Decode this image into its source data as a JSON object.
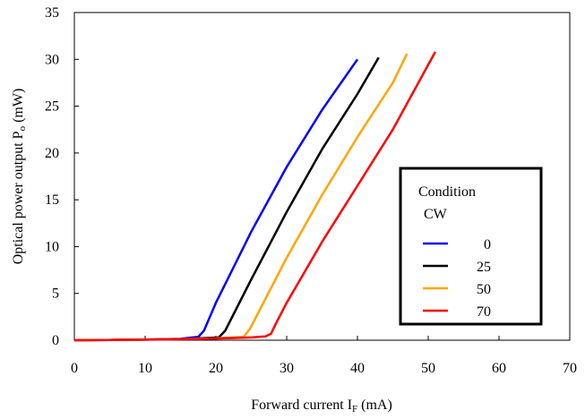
{
  "chart_data": {
    "type": "line",
    "title": "",
    "xlabel": "Forward current I",
    "xlabel_sub": "F",
    "xlabel_unit": " (mA)",
    "ylabel": "Optical power output P",
    "ylabel_sub": "o",
    "ylabel_unit": " (mW)",
    "xlim": [
      0,
      70
    ],
    "ylim": [
      0,
      35
    ],
    "xticks": [
      0,
      10,
      20,
      30,
      40,
      50,
      60,
      70
    ],
    "yticks": [
      0,
      5,
      10,
      15,
      20,
      25,
      30,
      35
    ],
    "grid": false,
    "legend": {
      "title_line1": "Condition",
      "title_line2": "CW",
      "placement": "lower-right"
    },
    "series": [
      {
        "name": "0",
        "color": "#0000ff",
        "x": [
          0,
          5,
          10,
          15,
          17.5,
          18.3,
          20,
          25,
          30,
          35,
          40
        ],
        "y": [
          0,
          0.03,
          0.07,
          0.15,
          0.35,
          1.0,
          4.0,
          11.6,
          18.5,
          24.6,
          30.0
        ]
      },
      {
        "name": "25",
        "color": "#000000",
        "x": [
          0,
          5,
          10,
          15,
          20.4,
          21.3,
          25,
          30,
          35,
          40,
          43
        ],
        "y": [
          0,
          0.03,
          0.06,
          0.12,
          0.3,
          1.0,
          6.5,
          13.7,
          20.4,
          26.3,
          30.2
        ]
      },
      {
        "name": "50",
        "color": "#ffa500",
        "x": [
          0,
          5,
          10,
          15,
          20,
          23.9,
          24.8,
          30,
          35,
          40,
          45,
          47
        ],
        "y": [
          0,
          0.03,
          0.06,
          0.11,
          0.2,
          0.35,
          1.2,
          8.8,
          15.5,
          21.7,
          27.5,
          30.6
        ]
      },
      {
        "name": "70",
        "color": "#ff0000",
        "x": [
          0,
          5,
          10,
          15,
          20,
          25,
          27,
          27.8,
          28.5,
          30,
          35,
          40,
          45,
          51
        ],
        "y": [
          0,
          0.03,
          0.06,
          0.1,
          0.18,
          0.3,
          0.4,
          0.7,
          1.8,
          4.0,
          10.5,
          16.5,
          22.5,
          30.8
        ]
      }
    ]
  }
}
